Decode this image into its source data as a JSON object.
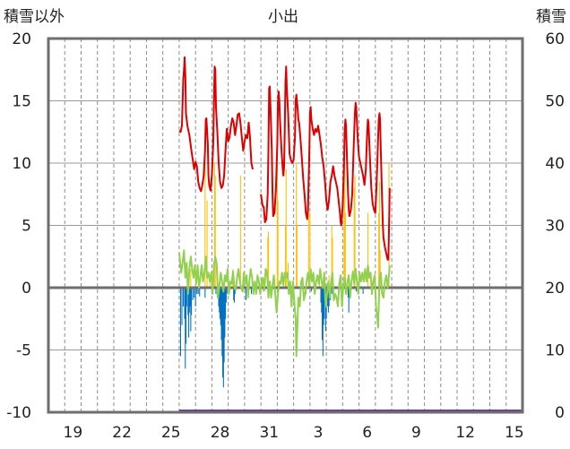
{
  "chart_data": {
    "type": "line",
    "title": "小出",
    "left_axis_label": "積雪以外",
    "right_axis_label": "積雪",
    "y_left": {
      "min": -10,
      "max": 20,
      "ticks": [
        "20",
        "15",
        "10",
        "5",
        "0",
        "-5",
        "-10"
      ]
    },
    "y_right": {
      "min": 0,
      "max": 60,
      "ticks": [
        "60",
        "50",
        "40",
        "30",
        "20",
        "10",
        "0"
      ]
    },
    "x_labels": [
      "19",
      "22",
      "25",
      "28",
      "31",
      "3",
      "6",
      "9",
      "12",
      "15"
    ],
    "grid": true,
    "hours_total": 696,
    "data_start_hour": 192,
    "series_colors": {
      "snow_depth": "#dd0000",
      "temperature": "#92d050",
      "snowfall": "#ffc000",
      "negative_bars": "#0070c0",
      "baseline": "#7030a0"
    },
    "snow_depth_points": [
      [
        192,
        45.2
      ],
      [
        194,
        45.0
      ],
      [
        196,
        46.0
      ],
      [
        198,
        53.5
      ],
      [
        199,
        55.0
      ],
      [
        200,
        57.0
      ],
      [
        201,
        54.0
      ],
      [
        202,
        48.0
      ],
      [
        204,
        46.0
      ],
      [
        207,
        44.5
      ],
      [
        210,
        42.0
      ],
      [
        212,
        40.5
      ],
      [
        214,
        39.0
      ],
      [
        216,
        40.2
      ],
      [
        218,
        39.5
      ],
      [
        220,
        37.0
      ],
      [
        222,
        36.0
      ],
      [
        224,
        35.5
      ],
      [
        226,
        36.5
      ],
      [
        228,
        38.0
      ],
      [
        230,
        42.0
      ],
      [
        231,
        47.0
      ],
      [
        232,
        47.2
      ],
      [
        234,
        43.0
      ],
      [
        235,
        38.0
      ],
      [
        236,
        36.5
      ],
      [
        238,
        35.6
      ],
      [
        240,
        38.0
      ],
      [
        242,
        43.0
      ],
      [
        243,
        50.0
      ],
      [
        244,
        55.5
      ],
      [
        245,
        55.0
      ],
      [
        246,
        49.0
      ],
      [
        248,
        45.0
      ],
      [
        250,
        40.0
      ],
      [
        252,
        37.0
      ],
      [
        254,
        36.0
      ],
      [
        256,
        36.4
      ],
      [
        258,
        38.0
      ],
      [
        260,
        42.0
      ],
      [
        262,
        45.5
      ],
      [
        264,
        43.5
      ],
      [
        266,
        44.2
      ],
      [
        268,
        46.0
      ],
      [
        270,
        47.2
      ],
      [
        272,
        46.5
      ],
      [
        274,
        44.5
      ],
      [
        276,
        46.0
      ],
      [
        278,
        47.8
      ],
      [
        280,
        48.0
      ],
      [
        282,
        46.5
      ],
      [
        284,
        44.0
      ],
      [
        286,
        42.0
      ],
      [
        288,
        43.5
      ],
      [
        290,
        44.5
      ],
      [
        292,
        44.0
      ],
      [
        294,
        46.5
      ],
      [
        296,
        44.0
      ],
      [
        297,
        42.0
      ],
      [
        298,
        40.0
      ],
      [
        300,
        39.0
      ],
      null,
      [
        312,
        35.0
      ],
      [
        314,
        33.5
      ],
      [
        315,
        33.0
      ],
      [
        316,
        33.0
      ],
      [
        318,
        30.5
      ],
      [
        320,
        31.0
      ],
      [
        322,
        35.0
      ],
      [
        323,
        42.0
      ],
      [
        324,
        52.0
      ],
      [
        325,
        52.3
      ],
      [
        326,
        49.0
      ],
      [
        328,
        42.0
      ],
      [
        329,
        35.0
      ],
      [
        330,
        31.5
      ],
      [
        332,
        32.0
      ],
      [
        334,
        36.0
      ],
      [
        336,
        43.0
      ],
      [
        337,
        49.5
      ],
      [
        338,
        51.5
      ],
      [
        339,
        50.0
      ],
      [
        340,
        47.0
      ],
      [
        342,
        42.5
      ],
      [
        344,
        39.0
      ],
      [
        345,
        38.0
      ],
      [
        346,
        39.5
      ],
      [
        347,
        45.0
      ],
      [
        348,
        53.0
      ],
      [
        349,
        55.5
      ],
      [
        350,
        52.0
      ],
      [
        352,
        48.0
      ],
      [
        354,
        41.5
      ],
      [
        356,
        40.5
      ],
      [
        358,
        40.0
      ],
      [
        360,
        40.5
      ],
      [
        362,
        44.0
      ],
      [
        363,
        50.0
      ],
      [
        364,
        51.0
      ],
      [
        366,
        48.5
      ],
      [
        367,
        47.0
      ],
      [
        368,
        46.5
      ],
      [
        370,
        44.0
      ],
      [
        372,
        41.0
      ],
      [
        374,
        37.5
      ],
      [
        376,
        35.0
      ],
      [
        378,
        32.0
      ],
      [
        380,
        31.0
      ],
      [
        381,
        32.5
      ],
      [
        383,
        41.5
      ],
      [
        384,
        48.0
      ],
      [
        385,
        49.0
      ],
      [
        386,
        47.0
      ],
      [
        388,
        45.5
      ],
      [
        390,
        44.5
      ],
      [
        392,
        45.5
      ],
      [
        394,
        45.0
      ],
      [
        396,
        46.0
      ],
      [
        398,
        44.5
      ],
      [
        400,
        43.0
      ],
      [
        402,
        41.0
      ],
      [
        404,
        39.5
      ],
      [
        406,
        37.0
      ],
      [
        408,
        34.0
      ],
      [
        410,
        32.5
      ],
      [
        412,
        34.0
      ],
      [
        414,
        37.0
      ],
      [
        416,
        38.0
      ],
      [
        418,
        39.5
      ],
      [
        420,
        38.0
      ],
      [
        422,
        37.0
      ],
      [
        424,
        36.0
      ],
      [
        426,
        34.0
      ],
      [
        428,
        32.0
      ],
      [
        429,
        30.5
      ],
      [
        430,
        30.0
      ],
      [
        432,
        33.0
      ],
      [
        434,
        40.0
      ],
      [
        435,
        45.5
      ],
      [
        436,
        47.0
      ],
      [
        437,
        46.0
      ],
      [
        438,
        42.0
      ],
      [
        440,
        35.0
      ],
      [
        441,
        32.5
      ],
      [
        442,
        31.5
      ],
      [
        444,
        32.5
      ],
      [
        446,
        35.0
      ],
      [
        448,
        42.0
      ],
      [
        450,
        48.0
      ],
      [
        451,
        49.7
      ],
      [
        452,
        49.0
      ],
      [
        454,
        44.0
      ],
      [
        456,
        41.0
      ],
      [
        458,
        40.0
      ],
      [
        460,
        39.0
      ],
      [
        462,
        38.0
      ],
      [
        464,
        36.5
      ],
      [
        466,
        39.0
      ],
      [
        468,
        45.0
      ],
      [
        469,
        47.0
      ],
      [
        470,
        46.5
      ],
      [
        472,
        41.0
      ],
      [
        474,
        36.0
      ],
      [
        476,
        33.5
      ],
      [
        478,
        32.5
      ],
      [
        480,
        32.0
      ],
      [
        482,
        37.0
      ],
      [
        484,
        44.0
      ],
      [
        485,
        47.0
      ],
      [
        486,
        48.0
      ],
      [
        487,
        47.0
      ],
      [
        488,
        42.0
      ],
      [
        490,
        34.0
      ],
      [
        491,
        30.0
      ],
      [
        492,
        28.0
      ],
      [
        494,
        26.5
      ],
      [
        496,
        25.5
      ],
      [
        498,
        24.5
      ],
      [
        499,
        24.5
      ],
      [
        500,
        29.0
      ],
      [
        501,
        36.0
      ]
    ],
    "temperature_points": [
      [
        192,
        2.8
      ],
      [
        195,
        1.2
      ],
      [
        197,
        2.0
      ],
      [
        199,
        3.0
      ],
      [
        201,
        0.8
      ],
      [
        203,
        2.0
      ],
      [
        205,
        -0.5
      ],
      [
        207,
        1.5
      ],
      [
        209,
        2.5
      ],
      [
        211,
        1.5
      ],
      [
        213,
        0.8
      ],
      [
        215,
        1.8
      ],
      [
        217,
        0.3
      ],
      [
        219,
        1.8
      ],
      [
        221,
        0.0
      ],
      [
        223,
        0.8
      ],
      [
        225,
        1.8
      ],
      [
        227,
        0.5
      ],
      [
        229,
        1.2
      ],
      [
        231,
        2.5
      ],
      [
        233,
        0.8
      ],
      [
        235,
        1.2
      ],
      [
        237,
        0.5
      ],
      [
        239,
        1.2
      ],
      [
        241,
        -0.5
      ],
      [
        243,
        1.8
      ],
      [
        245,
        2.5
      ],
      [
        247,
        2.0
      ],
      [
        249,
        -0.8
      ],
      [
        251,
        0.2
      ],
      [
        253,
        1.2
      ],
      [
        255,
        0.5
      ],
      [
        257,
        -0.3
      ],
      [
        259,
        1.0
      ],
      [
        261,
        0.5
      ],
      [
        263,
        1.5
      ],
      [
        265,
        -0.5
      ],
      [
        267,
        0.5
      ],
      [
        269,
        0.3
      ],
      [
        271,
        1.3
      ],
      [
        273,
        0.0
      ],
      [
        275,
        -0.2
      ],
      [
        277,
        0.8
      ],
      [
        279,
        1.5
      ],
      [
        281,
        0.5
      ],
      [
        283,
        0.0
      ],
      [
        285,
        -0.3
      ],
      [
        287,
        1.2
      ],
      [
        289,
        0.3
      ],
      [
        291,
        1.0
      ],
      [
        293,
        -0.8
      ],
      [
        295,
        0.5
      ],
      [
        297,
        1.5
      ],
      [
        299,
        0.8
      ],
      [
        301,
        -0.5
      ],
      [
        303,
        0.5
      ],
      [
        305,
        -0.5
      ],
      [
        307,
        1.0
      ],
      [
        309,
        0.5
      ],
      [
        311,
        -0.5
      ],
      [
        313,
        0.5
      ],
      [
        315,
        0.8
      ],
      [
        317,
        -0.2
      ],
      [
        319,
        1.5
      ],
      [
        321,
        1.2
      ],
      [
        323,
        -0.8
      ],
      [
        325,
        0.5
      ],
      [
        327,
        -0.8
      ],
      [
        329,
        0.2
      ],
      [
        331,
        1.0
      ],
      [
        333,
        -0.5
      ],
      [
        335,
        -2.0
      ],
      [
        337,
        -0.5
      ],
      [
        339,
        0.5
      ],
      [
        341,
        0.3
      ],
      [
        343,
        1.2
      ],
      [
        345,
        0.2
      ],
      [
        347,
        1.2
      ],
      [
        349,
        0.8
      ],
      [
        351,
        1.2
      ],
      [
        353,
        -0.5
      ],
      [
        355,
        0.5
      ],
      [
        357,
        -1.5
      ],
      [
        359,
        0.5
      ],
      [
        361,
        -1.2
      ],
      [
        363,
        -2.5
      ],
      [
        364,
        -5.5
      ],
      [
        365,
        -4.0
      ],
      [
        367,
        -0.8
      ],
      [
        369,
        -1.5
      ],
      [
        371,
        0.5
      ],
      [
        373,
        0.8
      ],
      [
        375,
        -1.0
      ],
      [
        377,
        -0.5
      ],
      [
        379,
        0.5
      ],
      [
        381,
        1.2
      ],
      [
        383,
        0.2
      ],
      [
        385,
        1.5
      ],
      [
        387,
        0.5
      ],
      [
        389,
        1.2
      ],
      [
        391,
        -0.5
      ],
      [
        393,
        0.5
      ],
      [
        395,
        1.0
      ],
      [
        397,
        0.3
      ],
      [
        399,
        1.5
      ],
      [
        401,
        0.5
      ],
      [
        403,
        0.0
      ],
      [
        405,
        1.2
      ],
      [
        407,
        -1.5
      ],
      [
        409,
        -0.5
      ],
      [
        411,
        0.5
      ],
      [
        413,
        -0.8
      ],
      [
        415,
        0.5
      ],
      [
        417,
        1.2
      ],
      [
        419,
        -1.0
      ],
      [
        421,
        -0.5
      ],
      [
        423,
        -0.8
      ],
      [
        425,
        -1.5
      ],
      [
        427,
        0.3
      ],
      [
        429,
        1.0
      ],
      [
        431,
        -1.5
      ],
      [
        433,
        0.2
      ],
      [
        435,
        0.8
      ],
      [
        437,
        -0.5
      ],
      [
        439,
        0.5
      ],
      [
        441,
        1.0
      ],
      [
        443,
        -0.8
      ],
      [
        445,
        0.5
      ],
      [
        447,
        1.3
      ],
      [
        449,
        0.3
      ],
      [
        451,
        1.5
      ],
      [
        453,
        0.5
      ],
      [
        455,
        -0.5
      ],
      [
        457,
        1.2
      ],
      [
        459,
        0.5
      ],
      [
        461,
        1.2
      ],
      [
        463,
        0.5
      ],
      [
        465,
        1.5
      ],
      [
        467,
        0.5
      ],
      [
        469,
        1.8
      ],
      [
        471,
        0.8
      ],
      [
        473,
        1.2
      ],
      [
        475,
        -0.5
      ],
      [
        477,
        0.5
      ],
      [
        479,
        1.0
      ],
      [
        481,
        -1.5
      ],
      [
        483,
        -2.5
      ],
      [
        484,
        -3.2
      ],
      [
        486,
        0.5
      ],
      [
        488,
        1.2
      ],
      [
        490,
        -0.5
      ],
      [
        492,
        -0.8
      ],
      [
        494,
        0.5
      ],
      [
        496,
        1.0
      ],
      [
        498,
        0.0
      ],
      [
        500,
        1.0
      ],
      [
        501,
        1.8
      ]
    ],
    "snowfall_bars": [
      [
        206,
        1.0
      ],
      [
        209,
        1.5
      ],
      [
        230,
        10.0
      ],
      [
        233,
        7.0
      ],
      [
        237,
        1.0
      ],
      [
        244,
        10.0
      ],
      [
        245,
        9.0
      ],
      [
        271,
        1.5
      ],
      [
        282,
        9.0
      ],
      [
        314,
        0.5
      ],
      [
        322,
        4.0
      ],
      [
        323,
        4.5
      ],
      [
        336,
        10.0
      ],
      [
        337,
        7.0
      ],
      [
        348,
        5.0
      ],
      [
        349,
        9.5
      ],
      [
        352,
        2.0
      ],
      [
        364,
        10.0
      ],
      [
        365,
        5.0
      ],
      [
        382,
        9.0
      ],
      [
        384,
        6.0
      ],
      [
        398,
        1.0
      ],
      [
        412,
        1.0
      ],
      [
        416,
        5.0
      ],
      [
        417,
        4.0
      ],
      [
        434,
        9.0
      ],
      [
        435,
        10.0
      ],
      [
        436,
        6.0
      ],
      [
        449,
        8.0
      ],
      [
        450,
        9.0
      ],
      [
        469,
        6.0
      ],
      [
        485,
        6.0
      ],
      [
        486,
        8.5
      ],
      [
        487,
        3.0
      ],
      [
        500,
        10.0
      ]
    ],
    "negative_bars": [
      [
        194,
        -5.5
      ],
      [
        196,
        -3.0
      ],
      [
        198,
        -1.5
      ],
      [
        200,
        -2.5
      ],
      [
        201,
        -6.5
      ],
      [
        202,
        -4.5
      ],
      [
        203,
        -1.5
      ],
      [
        205,
        -2.2
      ],
      [
        206,
        -4.0
      ],
      [
        207,
        -2.0
      ],
      [
        208,
        -1.5
      ],
      [
        209,
        -3.5
      ],
      [
        210,
        -2.2
      ],
      [
        212,
        -1.0
      ],
      [
        214,
        -0.8
      ],
      [
        216,
        -1.5
      ],
      [
        218,
        -0.5
      ],
      [
        220,
        -0.5
      ],
      [
        222,
        -0.7
      ],
      [
        230,
        -0.8
      ],
      [
        240,
        -0.5
      ],
      [
        246,
        -0.5
      ],
      [
        248,
        -0.8
      ],
      [
        250,
        -1.5
      ],
      [
        251,
        -2.0
      ],
      [
        252,
        -2.5
      ],
      [
        253,
        -3.0
      ],
      [
        254,
        -4.2
      ],
      [
        255,
        -5.5
      ],
      [
        256,
        -7.2
      ],
      [
        257,
        -8.0
      ],
      [
        258,
        -6.0
      ],
      [
        259,
        -4.0
      ],
      [
        260,
        -2.5
      ],
      [
        261,
        -1.2
      ],
      [
        262,
        -0.5
      ],
      [
        272,
        -1.0
      ],
      [
        273,
        -1.2
      ],
      [
        274,
        -0.5
      ],
      [
        290,
        -1.0
      ],
      [
        298,
        -0.5
      ],
      [
        316,
        -0.3
      ],
      [
        378,
        -0.5
      ],
      [
        386,
        -0.3
      ],
      [
        400,
        -1.2
      ],
      [
        401,
        -2.0
      ],
      [
        402,
        -4.2
      ],
      [
        403,
        -5.5
      ],
      [
        404,
        -3.0
      ],
      [
        405,
        -2.5
      ],
      [
        406,
        -1.5
      ],
      [
        407,
        -3.5
      ],
      [
        408,
        -2.5
      ],
      [
        409,
        -1.0
      ],
      [
        410,
        -1.5
      ],
      [
        411,
        -2.0
      ],
      [
        412,
        -1.5
      ],
      [
        413,
        -0.8
      ],
      [
        414,
        -1.0
      ],
      [
        416,
        -0.5
      ],
      [
        430,
        -0.5
      ],
      [
        440,
        -0.8
      ],
      [
        441,
        -2.0
      ],
      [
        452,
        -0.3
      ],
      [
        462,
        -0.5
      ]
    ]
  }
}
